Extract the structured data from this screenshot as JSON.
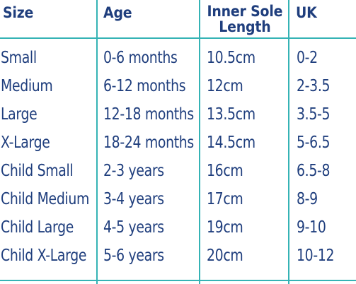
{
  "headers": {
    "size": "Size",
    "age": "Age",
    "inner_sole_line1": "Inner Sole",
    "inner_sole_line2": "Length",
    "uk": "UK"
  },
  "rows": [
    {
      "size": "Small",
      "age": "0-6 months",
      "length": "10.5cm",
      "uk": "0-2"
    },
    {
      "size": "Medium",
      "age": "6-12 months",
      "length": "12cm",
      "uk": "2-3.5"
    },
    {
      "size": "Large",
      "age": "12-18 months",
      "length": "13.5cm",
      "uk": "3.5-5"
    },
    {
      "size": "X-Large",
      "age": "18-24 months",
      "length": "14.5cm",
      "uk": "5-6.5"
    },
    {
      "size": "Child Small",
      "age": "2-3 years",
      "length": "16cm",
      "uk": "6.5-8"
    },
    {
      "size": "Child Medium",
      "age": "3-4 years",
      "length": "17cm",
      "uk": "8-9"
    },
    {
      "size": "Child Large",
      "age": "4-5 years",
      "length": "19cm",
      "uk": "9-10"
    },
    {
      "size": "Child X-Large",
      "age": "5-6 years",
      "length": "20cm",
      "uk": "10-12"
    }
  ],
  "colors": {
    "text": "#1f3e7d",
    "rule": "#35b3b5",
    "background": "#ffffff"
  }
}
